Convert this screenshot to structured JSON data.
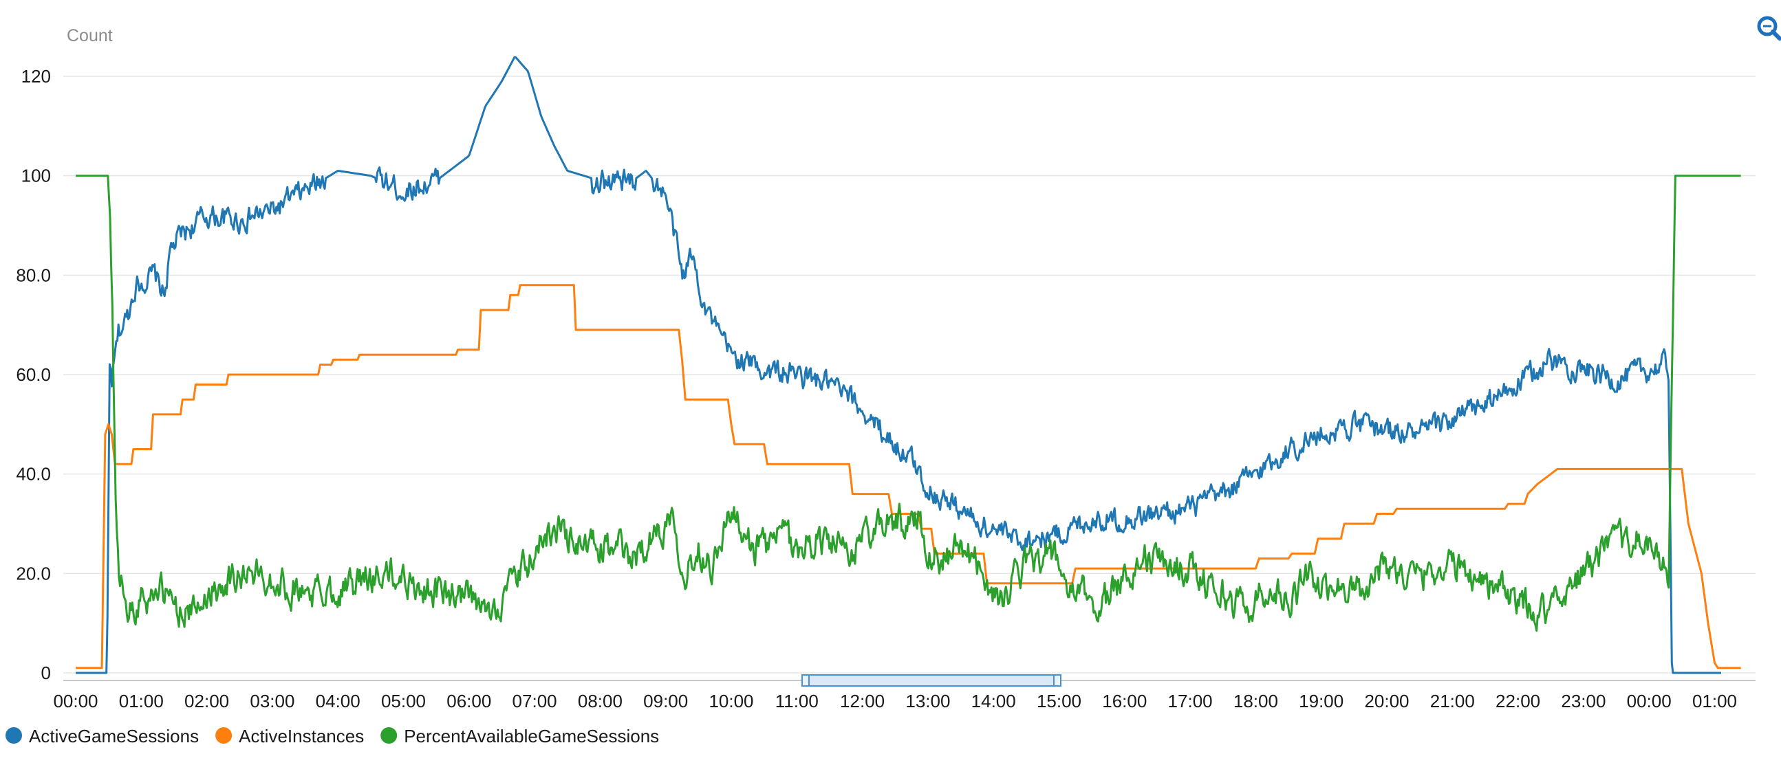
{
  "chart_data": {
    "type": "line",
    "ylabel": "Count",
    "ylim": [
      0,
      130
    ],
    "yticks": [
      {
        "value": 0,
        "label": "0"
      },
      {
        "value": 20,
        "label": "20.0"
      },
      {
        "value": 40,
        "label": "40.0"
      },
      {
        "value": 60,
        "label": "60.0"
      },
      {
        "value": 80,
        "label": "80.0"
      },
      {
        "value": 100,
        "label": "100"
      },
      {
        "value": 120,
        "label": "120"
      }
    ],
    "xticks": [
      "00:00",
      "01:00",
      "02:00",
      "03:00",
      "04:00",
      "05:00",
      "06:00",
      "07:00",
      "08:00",
      "09:00",
      "10:00",
      "11:00",
      "12:00",
      "13:00",
      "14:00",
      "15:00",
      "16:00",
      "17:00",
      "18:00",
      "19:00",
      "20:00",
      "21:00",
      "22:00",
      "23:00",
      "00:00",
      "01:00"
    ],
    "grid": true,
    "legend_position": "bottom-left",
    "series": [
      {
        "name": "ActiveGameSessions",
        "color": "#1f77b4",
        "noise": 1.8,
        "points": [
          [
            0,
            0
          ],
          [
            0.48,
            0
          ],
          [
            0.52,
            62
          ],
          [
            0.55,
            58
          ],
          [
            0.65,
            68
          ],
          [
            0.8,
            72
          ],
          [
            0.9,
            78
          ],
          [
            1.2,
            80
          ],
          [
            1.35,
            76
          ],
          [
            1.45,
            85
          ],
          [
            1.6,
            88
          ],
          [
            2,
            92
          ],
          [
            2.5,
            91
          ],
          [
            3,
            93
          ],
          [
            3.5,
            97
          ],
          [
            4,
            101
          ],
          [
            4.5,
            100
          ],
          [
            5,
            97
          ],
          [
            5.5,
            99
          ],
          [
            6,
            104
          ],
          [
            6.25,
            114
          ],
          [
            6.5,
            119
          ],
          [
            6.7,
            124
          ],
          [
            6.9,
            121
          ],
          [
            7.1,
            112
          ],
          [
            7.3,
            106
          ],
          [
            7.5,
            101
          ],
          [
            8,
            99
          ],
          [
            8.5,
            99
          ],
          [
            8.7,
            101
          ],
          [
            9,
            96
          ],
          [
            9.15,
            87
          ],
          [
            9.25,
            80
          ],
          [
            9.4,
            84
          ],
          [
            9.6,
            74
          ],
          [
            9.8,
            68
          ],
          [
            10,
            64
          ],
          [
            10.5,
            61
          ],
          [
            11,
            60
          ],
          [
            11.5,
            58
          ],
          [
            12,
            53
          ],
          [
            12.2,
            50
          ],
          [
            12.5,
            46
          ],
          [
            12.8,
            42
          ],
          [
            13,
            37
          ],
          [
            13.5,
            33
          ],
          [
            13.8,
            30
          ],
          [
            14,
            29
          ],
          [
            14.3,
            27
          ],
          [
            14.6,
            27
          ],
          [
            15,
            28
          ],
          [
            15.5,
            31
          ],
          [
            16,
            31
          ],
          [
            16.5,
            32
          ],
          [
            17,
            33
          ],
          [
            17.5,
            36
          ],
          [
            18,
            40
          ],
          [
            18.5,
            45
          ],
          [
            19,
            48
          ],
          [
            19.5,
            50
          ],
          [
            20,
            49
          ],
          [
            20.5,
            48
          ],
          [
            21,
            51
          ],
          [
            21.5,
            54
          ],
          [
            22,
            58
          ],
          [
            22.5,
            63
          ],
          [
            23,
            61
          ],
          [
            23.5,
            59
          ],
          [
            24,
            61
          ],
          [
            24.25,
            62
          ],
          [
            24.3,
            60
          ],
          [
            24.35,
            0
          ],
          [
            25.1,
            0
          ]
        ]
      },
      {
        "name": "ActiveInstances",
        "color": "#ff7f0e",
        "noise": 0,
        "points": [
          [
            0,
            1
          ],
          [
            0.4,
            1
          ],
          [
            0.45,
            48
          ],
          [
            0.5,
            50
          ],
          [
            0.55,
            48
          ],
          [
            0.6,
            42
          ],
          [
            0.85,
            42
          ],
          [
            0.88,
            45
          ],
          [
            1.15,
            45
          ],
          [
            1.18,
            52
          ],
          [
            1.6,
            52
          ],
          [
            1.63,
            55
          ],
          [
            1.8,
            55
          ],
          [
            1.83,
            58
          ],
          [
            2.3,
            58
          ],
          [
            2.33,
            60
          ],
          [
            3.7,
            60
          ],
          [
            3.73,
            62
          ],
          [
            3.9,
            62
          ],
          [
            3.93,
            63
          ],
          [
            4.3,
            63
          ],
          [
            4.33,
            64
          ],
          [
            5.8,
            64
          ],
          [
            5.83,
            65
          ],
          [
            6.15,
            65
          ],
          [
            6.18,
            73
          ],
          [
            6.6,
            73
          ],
          [
            6.63,
            76
          ],
          [
            6.75,
            76
          ],
          [
            6.78,
            78
          ],
          [
            7.6,
            78
          ],
          [
            7.63,
            69
          ],
          [
            9.2,
            69
          ],
          [
            9.25,
            63
          ],
          [
            9.3,
            55
          ],
          [
            9.95,
            55
          ],
          [
            10.0,
            50
          ],
          [
            10.05,
            46
          ],
          [
            10.5,
            46
          ],
          [
            10.55,
            42
          ],
          [
            11.8,
            42
          ],
          [
            11.85,
            36
          ],
          [
            12.4,
            36
          ],
          [
            12.45,
            32
          ],
          [
            12.85,
            32
          ],
          [
            12.9,
            29
          ],
          [
            13.05,
            29
          ],
          [
            13.1,
            24
          ],
          [
            13.85,
            24
          ],
          [
            13.9,
            18
          ],
          [
            15.2,
            18
          ],
          [
            15.25,
            21
          ],
          [
            16.7,
            21
          ],
          [
            16.75,
            21
          ],
          [
            17.2,
            21
          ],
          [
            17.25,
            21
          ],
          [
            18,
            21
          ],
          [
            18.05,
            23
          ],
          [
            18.5,
            23
          ],
          [
            18.55,
            24
          ],
          [
            18.9,
            24
          ],
          [
            18.95,
            27
          ],
          [
            19.3,
            27
          ],
          [
            19.35,
            30
          ],
          [
            19.8,
            30
          ],
          [
            19.85,
            32
          ],
          [
            20.1,
            32
          ],
          [
            20.15,
            33
          ],
          [
            21.8,
            33
          ],
          [
            21.85,
            34
          ],
          [
            22.1,
            34
          ],
          [
            22.15,
            36
          ],
          [
            22.3,
            38
          ],
          [
            22.5,
            40
          ],
          [
            22.6,
            41
          ],
          [
            24.5,
            41
          ],
          [
            24.6,
            30
          ],
          [
            24.8,
            20
          ],
          [
            24.9,
            10
          ],
          [
            25,
            2
          ],
          [
            25.05,
            1
          ],
          [
            25.4,
            1
          ]
        ]
      },
      {
        "name": "PercentAvailableGameSessions",
        "color": "#2ca02c",
        "noise": 2.4,
        "points": [
          [
            0,
            100
          ],
          [
            0.5,
            100
          ],
          [
            0.55,
            80
          ],
          [
            0.6,
            40
          ],
          [
            0.65,
            22
          ],
          [
            0.75,
            15
          ],
          [
            0.9,
            12
          ],
          [
            1.0,
            16
          ],
          [
            1.1,
            14
          ],
          [
            1.2,
            18
          ],
          [
            1.4,
            15
          ],
          [
            1.6,
            13
          ],
          [
            1.8,
            12
          ],
          [
            2,
            16
          ],
          [
            2.3,
            19
          ],
          [
            2.6,
            20
          ],
          [
            3,
            19
          ],
          [
            3.3,
            17
          ],
          [
            3.6,
            16
          ],
          [
            4,
            17
          ],
          [
            4.3,
            18
          ],
          [
            4.6,
            20
          ],
          [
            5,
            19
          ],
          [
            5.3,
            17
          ],
          [
            5.6,
            16
          ],
          [
            6,
            15
          ],
          [
            6.2,
            12
          ],
          [
            6.4,
            13
          ],
          [
            6.6,
            17
          ],
          [
            6.8,
            20
          ],
          [
            7,
            24
          ],
          [
            7.2,
            28
          ],
          [
            7.4,
            29
          ],
          [
            7.6,
            26
          ],
          [
            8,
            25
          ],
          [
            8.3,
            25
          ],
          [
            8.5,
            23
          ],
          [
            8.7,
            26
          ],
          [
            9,
            30
          ],
          [
            9.1,
            33
          ],
          [
            9.2,
            26
          ],
          [
            9.3,
            20
          ],
          [
            9.5,
            25
          ],
          [
            9.7,
            22
          ],
          [
            9.9,
            29
          ],
          [
            10,
            33
          ],
          [
            10.2,
            26
          ],
          [
            10.5,
            25
          ],
          [
            10.8,
            28
          ],
          [
            11,
            25
          ],
          [
            11.3,
            27
          ],
          [
            11.6,
            26
          ],
          [
            11.8,
            22
          ],
          [
            12,
            28
          ],
          [
            12.3,
            29
          ],
          [
            12.5,
            31
          ],
          [
            12.7,
            30
          ],
          [
            12.85,
            32
          ],
          [
            13,
            25
          ],
          [
            13.2,
            23
          ],
          [
            13.5,
            25
          ],
          [
            13.8,
            22
          ],
          [
            14,
            15
          ],
          [
            14.2,
            16
          ],
          [
            14.5,
            22
          ],
          [
            14.8,
            24
          ],
          [
            15,
            22
          ],
          [
            15.2,
            15
          ],
          [
            15.4,
            16
          ],
          [
            15.6,
            13
          ],
          [
            15.8,
            16
          ],
          [
            16,
            20
          ],
          [
            16.3,
            23
          ],
          [
            16.6,
            22
          ],
          [
            17,
            21
          ],
          [
            17.3,
            18
          ],
          [
            17.6,
            15
          ],
          [
            17.9,
            13
          ],
          [
            18.2,
            18
          ],
          [
            18.5,
            14
          ],
          [
            18.8,
            20
          ],
          [
            19,
            16
          ],
          [
            19.3,
            18
          ],
          [
            19.6,
            17
          ],
          [
            20,
            22
          ],
          [
            20.3,
            19
          ],
          [
            20.6,
            20
          ],
          [
            21,
            22
          ],
          [
            21.3,
            20
          ],
          [
            21.6,
            18
          ],
          [
            22,
            14
          ],
          [
            22.3,
            12
          ],
          [
            22.6,
            15
          ],
          [
            22.9,
            19
          ],
          [
            23.2,
            23
          ],
          [
            23.5,
            26
          ],
          [
            23.8,
            27
          ],
          [
            24,
            25
          ],
          [
            24.2,
            22
          ],
          [
            24.3,
            20
          ],
          [
            24.35,
            60
          ],
          [
            24.4,
            100
          ],
          [
            25.4,
            100
          ]
        ]
      }
    ],
    "x_domain": [
      0,
      25.4
    ]
  }
}
